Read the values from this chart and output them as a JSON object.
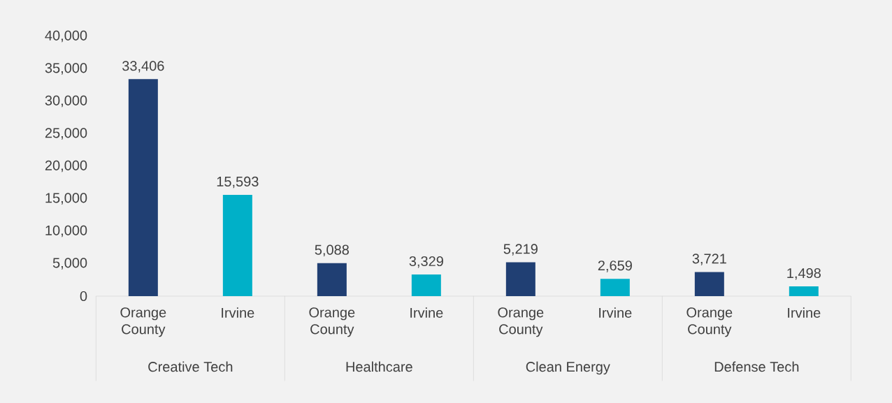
{
  "chart_data": {
    "type": "bar",
    "categories": [
      "Creative Tech",
      "Healthcare",
      "Clean Energy",
      "Defense Tech"
    ],
    "series": [
      {
        "name": "Orange County",
        "color": "#203f73",
        "values": [
          33406,
          5088,
          5219,
          3721
        ],
        "value_labels": [
          "33,406",
          "5,088",
          "5,219",
          "3,721"
        ]
      },
      {
        "name": "Irvine",
        "color": "#00b0c8",
        "values": [
          15593,
          3329,
          2659,
          1498
        ],
        "value_labels": [
          "15,593",
          "3,329",
          "2,659",
          "1,498"
        ]
      }
    ],
    "ylim": [
      0,
      40000
    ],
    "yticks": [
      {
        "value": 0,
        "label": "0"
      },
      {
        "value": 5000,
        "label": "5,000"
      },
      {
        "value": 10000,
        "label": "10,000"
      },
      {
        "value": 15000,
        "label": "15,000"
      },
      {
        "value": 20000,
        "label": "20,000"
      },
      {
        "value": 25000,
        "label": "25,000"
      },
      {
        "value": 30000,
        "label": "30,000"
      },
      {
        "value": 35000,
        "label": "35,000"
      },
      {
        "value": 40000,
        "label": "40,000"
      }
    ],
    "grid": false
  }
}
